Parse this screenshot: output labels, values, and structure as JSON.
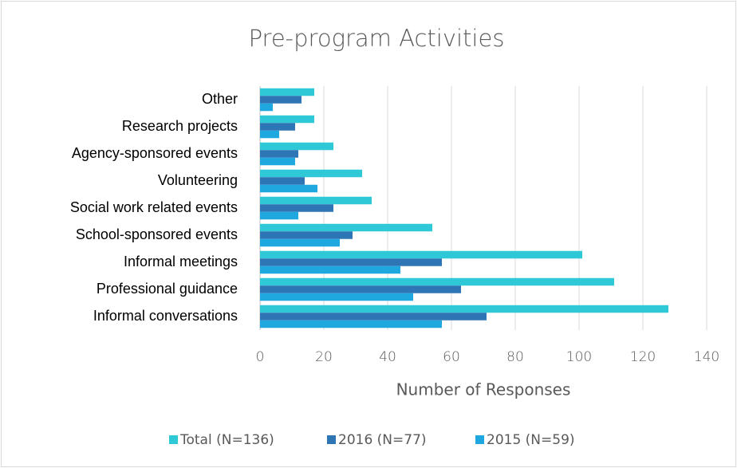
{
  "chart_data": {
    "type": "bar",
    "orientation": "horizontal",
    "title": "Pre-program Activities",
    "x_label": "Number of Responses",
    "categories": [
      "Other",
      "Research projects",
      "Agency-sponsored events",
      "Volunteering",
      "Social work related events",
      "School-sponsored events",
      "Informal meetings",
      "Professional guidance",
      "Informal conversations"
    ],
    "series": [
      {
        "name": "Total (N=136)",
        "color": "#2ec8d6",
        "values": [
          17,
          17,
          23,
          32,
          35,
          54,
          101,
          111,
          128
        ]
      },
      {
        "name": "2016 (N=77)",
        "color": "#2e75b6",
        "values": [
          13,
          11,
          12,
          14,
          23,
          29,
          57,
          63,
          71
        ]
      },
      {
        "name": "2015 (N=59)",
        "color": "#1fa8e0",
        "values": [
          4,
          6,
          11,
          18,
          12,
          25,
          44,
          48,
          57
        ]
      }
    ],
    "xlim": [
      0,
      140
    ],
    "xticks": [
      0,
      20,
      40,
      60,
      80,
      100,
      120,
      140
    ],
    "grid": true,
    "legend": "bottom"
  }
}
